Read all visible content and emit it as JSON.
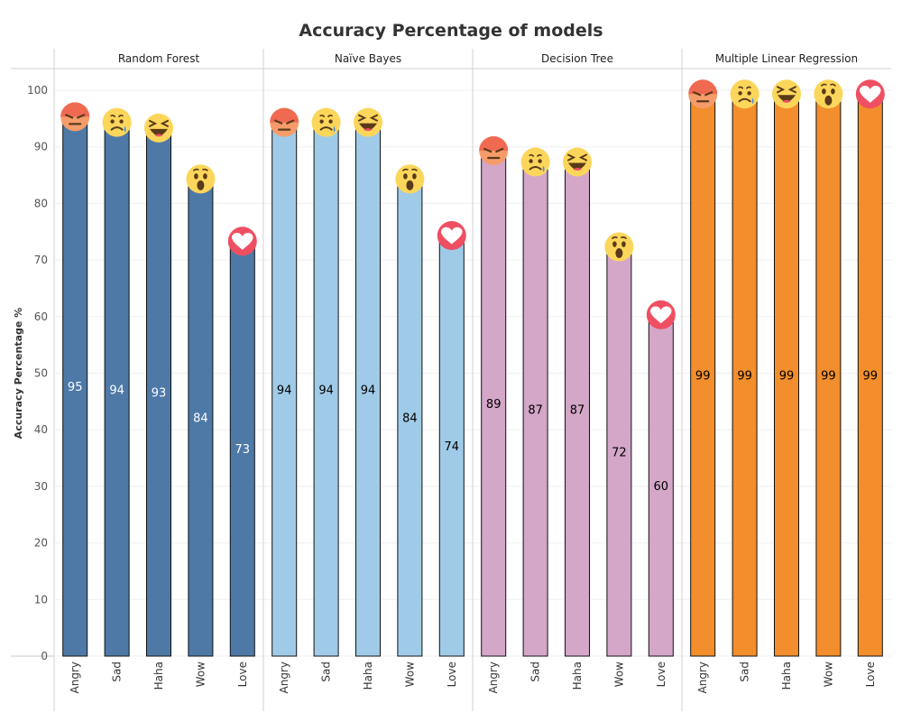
{
  "chart_data": {
    "type": "bar",
    "title": "Accuracy Percentage of models",
    "ylabel": "Accuracy Percentage %",
    "xlabel": "",
    "ylim": [
      0,
      100
    ],
    "yticks": [
      0,
      10,
      20,
      30,
      40,
      50,
      60,
      70,
      80,
      90,
      100
    ],
    "grid": true,
    "categories": [
      "Angry",
      "Sad",
      "Haha",
      "Wow",
      "Love"
    ],
    "panels": [
      {
        "name": "Random Forest",
        "color": "#4e79a7",
        "label_color": "#ffffff",
        "values": [
          95,
          94,
          93,
          84,
          73
        ]
      },
      {
        "name": "Naïve Bayes",
        "color": "#a0cbe8",
        "label_color": "#000000",
        "values": [
          94,
          94,
          94,
          84,
          74
        ]
      },
      {
        "name": "Decision Tree",
        "color": "#d4a6c8",
        "label_color": "#000000",
        "values": [
          89,
          87,
          87,
          72,
          60
        ]
      },
      {
        "name": "Multiple Linear Regression",
        "color": "#f28e2b",
        "label_color": "#000000",
        "values": [
          99,
          99,
          99,
          99,
          99
        ]
      }
    ],
    "icons": [
      "angry-emoji-icon",
      "sad-emoji-icon",
      "haha-emoji-icon",
      "wow-emoji-icon",
      "love-heart-icon"
    ]
  }
}
